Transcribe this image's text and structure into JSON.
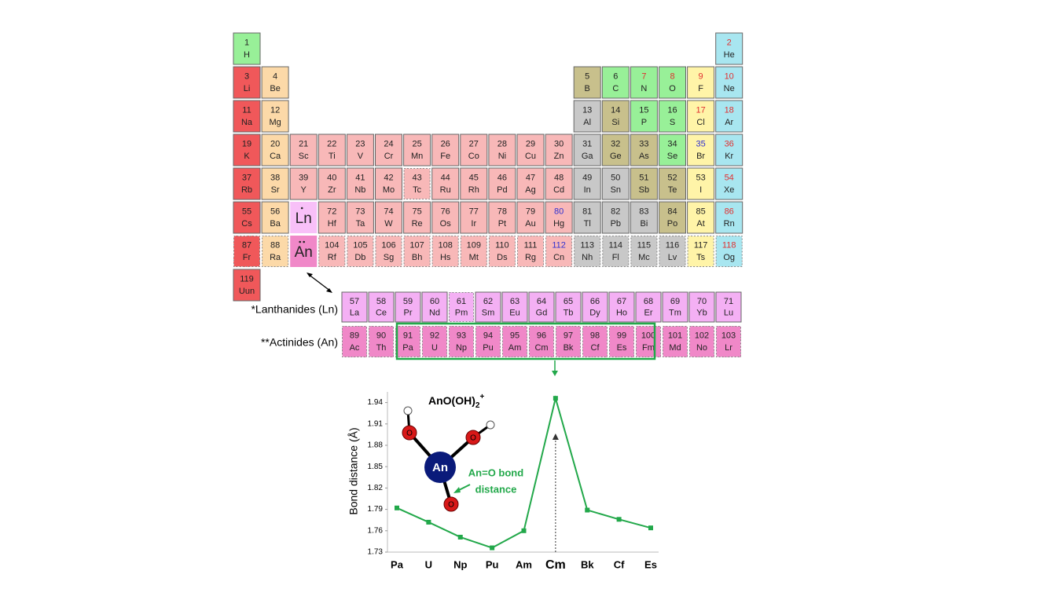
{
  "periodic_table": {
    "elements": [
      {
        "number": 1,
        "symbol": "H",
        "fill": "#98f098"
      },
      {
        "number": 2,
        "symbol": "He",
        "fill": "#a8e6f0",
        "number_color": "#e03030"
      },
      {
        "number": 3,
        "symbol": "Li",
        "fill": "#f0585a"
      },
      {
        "number": 4,
        "symbol": "Be",
        "fill": "#fcd9a8"
      },
      {
        "number": 5,
        "symbol": "B",
        "fill": "#c8c08c"
      },
      {
        "number": 6,
        "symbol": "C",
        "fill": "#98f098"
      },
      {
        "number": 7,
        "symbol": "N",
        "fill": "#98f098",
        "number_color": "#e03030"
      },
      {
        "number": 8,
        "symbol": "O",
        "fill": "#98f098",
        "number_color": "#e03030"
      },
      {
        "number": 9,
        "symbol": "F",
        "fill": "#fff4a8",
        "number_color": "#e03030"
      },
      {
        "number": 10,
        "symbol": "Ne",
        "fill": "#a8e6f0",
        "number_color": "#e03030"
      },
      {
        "number": 11,
        "symbol": "Na",
        "fill": "#f0585a"
      },
      {
        "number": 12,
        "symbol": "Mg",
        "fill": "#fcd9a8"
      },
      {
        "number": 13,
        "symbol": "Al",
        "fill": "#c8c8c8"
      },
      {
        "number": 14,
        "symbol": "Si",
        "fill": "#c8c08c"
      },
      {
        "number": 15,
        "symbol": "P",
        "fill": "#98f098"
      },
      {
        "number": 16,
        "symbol": "S",
        "fill": "#98f098"
      },
      {
        "number": 17,
        "symbol": "Cl",
        "fill": "#fff4a8",
        "number_color": "#e03030"
      },
      {
        "number": 18,
        "symbol": "Ar",
        "fill": "#a8e6f0",
        "number_color": "#e03030"
      },
      {
        "number": 19,
        "symbol": "K",
        "fill": "#f0585a"
      },
      {
        "number": 20,
        "symbol": "Ca",
        "fill": "#fcd9a8"
      },
      {
        "number": 21,
        "symbol": "Sc",
        "fill": "#f8b8b8"
      },
      {
        "number": 22,
        "symbol": "Ti",
        "fill": "#f8b8b8"
      },
      {
        "number": 23,
        "symbol": "V",
        "fill": "#f8b8b8"
      },
      {
        "number": 24,
        "symbol": "Cr",
        "fill": "#f8b8b8"
      },
      {
        "number": 25,
        "symbol": "Mn",
        "fill": "#f8b8b8"
      },
      {
        "number": 26,
        "symbol": "Fe",
        "fill": "#f8b8b8"
      },
      {
        "number": 27,
        "symbol": "Co",
        "fill": "#f8b8b8"
      },
      {
        "number": 28,
        "symbol": "Ni",
        "fill": "#f8b8b8"
      },
      {
        "number": 29,
        "symbol": "Cu",
        "fill": "#f8b8b8"
      },
      {
        "number": 30,
        "symbol": "Zn",
        "fill": "#f8b8b8"
      },
      {
        "number": 31,
        "symbol": "Ga",
        "fill": "#c8c8c8"
      },
      {
        "number": 32,
        "symbol": "Ge",
        "fill": "#c8c08c"
      },
      {
        "number": 33,
        "symbol": "As",
        "fill": "#c8c08c"
      },
      {
        "number": 34,
        "symbol": "Se",
        "fill": "#98f098"
      },
      {
        "number": 35,
        "symbol": "Br",
        "fill": "#fff4a8",
        "number_color": "#3030d0"
      },
      {
        "number": 36,
        "symbol": "Kr",
        "fill": "#a8e6f0",
        "number_color": "#e03030"
      },
      {
        "number": 37,
        "symbol": "Rb",
        "fill": "#f0585a"
      },
      {
        "number": 38,
        "symbol": "Sr",
        "fill": "#fcd9a8"
      },
      {
        "number": 39,
        "symbol": "Y",
        "fill": "#f8b8b8"
      },
      {
        "number": 40,
        "symbol": "Zr",
        "fill": "#f8b8b8"
      },
      {
        "number": 41,
        "symbol": "Nb",
        "fill": "#f8b8b8"
      },
      {
        "number": 42,
        "symbol": "Mo",
        "fill": "#f8b8b8"
      },
      {
        "number": 43,
        "symbol": "Tc",
        "fill": "#f8b8b8",
        "dashed": true
      },
      {
        "number": 44,
        "symbol": "Ru",
        "fill": "#f8b8b8"
      },
      {
        "number": 45,
        "symbol": "Rh",
        "fill": "#f8b8b8"
      },
      {
        "number": 46,
        "symbol": "Pd",
        "fill": "#f8b8b8"
      },
      {
        "number": 47,
        "symbol": "Ag",
        "fill": "#f8b8b8"
      },
      {
        "number": 48,
        "symbol": "Cd",
        "fill": "#f8b8b8"
      },
      {
        "number": 49,
        "symbol": "In",
        "fill": "#c8c8c8"
      },
      {
        "number": 50,
        "symbol": "Sn",
        "fill": "#c8c8c8"
      },
      {
        "number": 51,
        "symbol": "Sb",
        "fill": "#c8c08c"
      },
      {
        "number": 52,
        "symbol": "Te",
        "fill": "#c8c08c"
      },
      {
        "number": 53,
        "symbol": "I",
        "fill": "#fff4a8"
      },
      {
        "number": 54,
        "symbol": "Xe",
        "fill": "#a8e6f0",
        "number_color": "#e03030"
      },
      {
        "number": 55,
        "symbol": "Cs",
        "fill": "#f0585a"
      },
      {
        "number": 56,
        "symbol": "Ba",
        "fill": "#fcd9a8"
      },
      {
        "number": 57,
        "symbol": "La",
        "fill": "#f4b0f4"
      },
      {
        "number": 58,
        "symbol": "Ce",
        "fill": "#f4b0f4"
      },
      {
        "number": 59,
        "symbol": "Pr",
        "fill": "#f4b0f4"
      },
      {
        "number": 60,
        "symbol": "Nd",
        "fill": "#f4b0f4"
      },
      {
        "number": 61,
        "symbol": "Pm",
        "fill": "#f4b0f4",
        "dashed": true
      },
      {
        "number": 62,
        "symbol": "Sm",
        "fill": "#f4b0f4"
      },
      {
        "number": 63,
        "symbol": "Eu",
        "fill": "#f4b0f4"
      },
      {
        "number": 64,
        "symbol": "Gd",
        "fill": "#f4b0f4"
      },
      {
        "number": 65,
        "symbol": "Tb",
        "fill": "#f4b0f4"
      },
      {
        "number": 66,
        "symbol": "Dy",
        "fill": "#f4b0f4"
      },
      {
        "number": 67,
        "symbol": "Ho",
        "fill": "#f4b0f4"
      },
      {
        "number": 68,
        "symbol": "Er",
        "fill": "#f4b0f4"
      },
      {
        "number": 69,
        "symbol": "Tm",
        "fill": "#f4b0f4"
      },
      {
        "number": 70,
        "symbol": "Yb",
        "fill": "#f4b0f4"
      },
      {
        "number": 71,
        "symbol": "Lu",
        "fill": "#f4b0f4"
      },
      {
        "number": 72,
        "symbol": "Hf",
        "fill": "#f8b8b8"
      },
      {
        "number": 73,
        "symbol": "Ta",
        "fill": "#f8b8b8"
      },
      {
        "number": 74,
        "symbol": "W",
        "fill": "#f8b8b8"
      },
      {
        "number": 75,
        "symbol": "Re",
        "fill": "#f8b8b8"
      },
      {
        "number": 76,
        "symbol": "Os",
        "fill": "#f8b8b8"
      },
      {
        "number": 77,
        "symbol": "Ir",
        "fill": "#f8b8b8"
      },
      {
        "number": 78,
        "symbol": "Pt",
        "fill": "#f8b8b8"
      },
      {
        "number": 79,
        "symbol": "Au",
        "fill": "#f8b8b8"
      },
      {
        "number": 80,
        "symbol": "Hg",
        "fill": "#f8b8b8",
        "number_color": "#3030d0"
      },
      {
        "number": 81,
        "symbol": "Tl",
        "fill": "#c8c8c8"
      },
      {
        "number": 82,
        "symbol": "Pb",
        "fill": "#c8c8c8"
      },
      {
        "number": 83,
        "symbol": "Bi",
        "fill": "#c8c8c8"
      },
      {
        "number": 84,
        "symbol": "Po",
        "fill": "#c8c08c"
      },
      {
        "number": 85,
        "symbol": "At",
        "fill": "#fff4a8"
      },
      {
        "number": 86,
        "symbol": "Rn",
        "fill": "#a8e6f0",
        "number_color": "#e03030"
      },
      {
        "number": 87,
        "symbol": "Fr",
        "fill": "#f0585a",
        "dashed": true
      },
      {
        "number": 88,
        "symbol": "Ra",
        "fill": "#fcd9a8",
        "dashed": true
      },
      {
        "number": 89,
        "symbol": "Ac",
        "fill": "#f088c8",
        "dashed": true
      },
      {
        "number": 90,
        "symbol": "Th",
        "fill": "#f088c8",
        "dashed": true
      },
      {
        "number": 91,
        "symbol": "Pa",
        "fill": "#f088c8",
        "dashed": true
      },
      {
        "number": 92,
        "symbol": "U",
        "fill": "#f088c8",
        "dashed": true
      },
      {
        "number": 93,
        "symbol": "Np",
        "fill": "#f088c8",
        "dashed": true
      },
      {
        "number": 94,
        "symbol": "Pu",
        "fill": "#f088c8",
        "dashed": true
      },
      {
        "number": 95,
        "symbol": "Am",
        "fill": "#f088c8",
        "dashed": true
      },
      {
        "number": 96,
        "symbol": "Cm",
        "fill": "#f088c8",
        "dashed": true
      },
      {
        "number": 97,
        "symbol": "Bk",
        "fill": "#f088c8",
        "dashed": true
      },
      {
        "number": 98,
        "symbol": "Cf",
        "fill": "#f088c8",
        "dashed": true
      },
      {
        "number": 99,
        "symbol": "Es",
        "fill": "#f088c8",
        "dashed": true
      },
      {
        "number": 100,
        "symbol": "Fm",
        "fill": "#f088c8",
        "dashed": true
      },
      {
        "number": 101,
        "symbol": "Md",
        "fill": "#f088c8",
        "dashed": true
      },
      {
        "number": 102,
        "symbol": "No",
        "fill": "#f088c8",
        "dashed": true
      },
      {
        "number": 103,
        "symbol": "Lr",
        "fill": "#f088c8",
        "dashed": true
      },
      {
        "number": 104,
        "symbol": "Rf",
        "fill": "#f8b8b8",
        "dashed": true
      },
      {
        "number": 105,
        "symbol": "Db",
        "fill": "#f8b8b8",
        "dashed": true
      },
      {
        "number": 106,
        "symbol": "Sg",
        "fill": "#f8b8b8",
        "dashed": true
      },
      {
        "number": 107,
        "symbol": "Bh",
        "fill": "#f8b8b8",
        "dashed": true
      },
      {
        "number": 108,
        "symbol": "Hs",
        "fill": "#f8b8b8",
        "dashed": true
      },
      {
        "number": 109,
        "symbol": "Mt",
        "fill": "#f8b8b8",
        "dashed": true
      },
      {
        "number": 110,
        "symbol": "Ds",
        "fill": "#f8b8b8",
        "dashed": true
      },
      {
        "number": 111,
        "symbol": "Rg",
        "fill": "#f8b8b8",
        "dashed": true
      },
      {
        "number": 112,
        "symbol": "Cn",
        "fill": "#f8b8b8",
        "dashed": true,
        "number_color": "#3030d0"
      },
      {
        "number": 113,
        "symbol": "Nh",
        "fill": "#c8c8c8",
        "dashed": true
      },
      {
        "number": 114,
        "symbol": "Fl",
        "fill": "#c8c8c8",
        "dashed": true
      },
      {
        "number": 115,
        "symbol": "Mc",
        "fill": "#c8c8c8",
        "dashed": true
      },
      {
        "number": 116,
        "symbol": "Lv",
        "fill": "#c8c8c8",
        "dashed": true
      },
      {
        "number": 117,
        "symbol": "Ts",
        "fill": "#fff4a8",
        "dashed": true
      },
      {
        "number": 118,
        "symbol": "Og",
        "fill": "#a8e6f0",
        "dashed": true,
        "number_color": "#e03030"
      },
      {
        "number": 119,
        "symbol": "Uun",
        "fill": "#f0585a"
      }
    ],
    "placeholders": [
      {
        "symbol": "Ln",
        "fill": "#f8c0f8"
      },
      {
        "symbol": "An",
        "fill": "#f088c8"
      }
    ],
    "row_labels": [
      "*Lanthanides (Ln)",
      "**Actinides (An)"
    ]
  },
  "chart_data": {
    "type": "line",
    "title": [
      "AnO(OH)",
      "2",
      "+"
    ],
    "y_label": "Bond distance (Å)",
    "categories": [
      "Pa",
      "U",
      "Np",
      "Pu",
      "Am",
      "Cm",
      "Bk",
      "Cf",
      "Es"
    ],
    "values": [
      1.792,
      1.772,
      1.751,
      1.736,
      1.76,
      1.946,
      1.789,
      1.776,
      1.764
    ],
    "color": "#22a84a",
    "ylim": [
      1.73,
      1.955
    ],
    "yticks": [
      1.73,
      1.76,
      1.79,
      1.82,
      1.85,
      1.88,
      1.91,
      1.94
    ],
    "annotation": [
      "An=O bond",
      "distance"
    ],
    "molecule_labels": [
      "An",
      "O",
      "O",
      "O"
    ]
  }
}
